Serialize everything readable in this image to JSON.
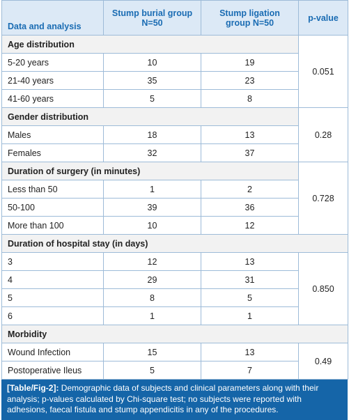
{
  "header": [
    "Data and analysis",
    "Stump burial group N=50",
    "Stump ligation group N=50",
    "p-value"
  ],
  "sections": [
    {
      "title": "Age distribution",
      "p_value": "0.051",
      "rows": [
        [
          "5-20 years",
          "10",
          "19"
        ],
        [
          "21-40 years",
          "35",
          "23"
        ],
        [
          "41-60 years",
          "5",
          "8"
        ]
      ]
    },
    {
      "title": "Gender distribution",
      "p_value": "0.28",
      "rows": [
        [
          "Males",
          "18",
          "13"
        ],
        [
          "Females",
          "32",
          "37"
        ]
      ]
    },
    {
      "title": "Duration of surgery (in minutes)",
      "p_value": "0.728",
      "rows": [
        [
          "Less than 50",
          "1",
          "2"
        ],
        [
          "50-100",
          "39",
          "36"
        ],
        [
          "More than 100",
          "10",
          "12"
        ]
      ]
    },
    {
      "title": "Duration of hospital stay (in days)",
      "p_value": "0.850",
      "rows": [
        [
          "3",
          "12",
          "13"
        ],
        [
          "4",
          "29",
          "31"
        ],
        [
          "5",
          "8",
          "5"
        ],
        [
          "6",
          "1",
          "1"
        ]
      ]
    },
    {
      "title": "Morbidity",
      "p_value": "0.49",
      "rows": [
        [
          "Wound Infection",
          "15",
          "13"
        ],
        [
          "Postoperative Ileus",
          "5",
          "7"
        ]
      ]
    }
  ],
  "caption": {
    "label": "[Table/Fig-2]:",
    "text": "Demographic data of subjects and clinical parameters along with their analysis; p-values calculated by Chi-square test; no subjects were reported with adhesions, faecal fistula and stump appendicitis in any of the procedures."
  }
}
